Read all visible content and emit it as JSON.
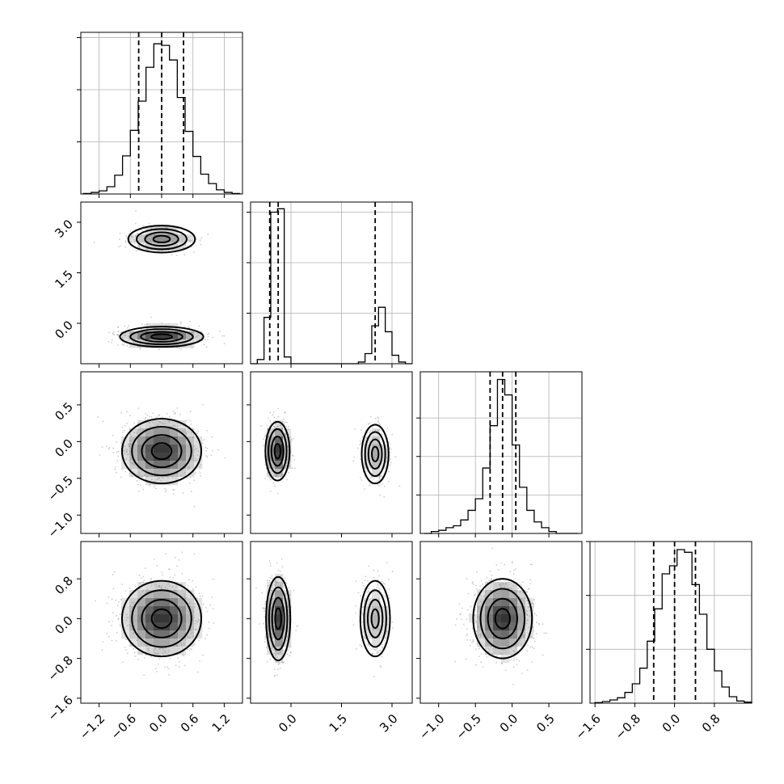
{
  "chart_data": {
    "type": "corner",
    "grid": true,
    "params": [
      {
        "range": [
          -1.55,
          1.55
        ],
        "ticks": [
          -1.2,
          -0.6,
          0.0,
          0.6,
          1.2
        ],
        "tick_labels": [
          "−1.2",
          "−0.6",
          "0.0",
          "0.6",
          "1.2"
        ],
        "quantiles": [
          -0.44,
          0.0,
          0.42
        ]
      },
      {
        "range": [
          -1.2,
          3.6
        ],
        "ticks": [
          0.0,
          1.5,
          3.0
        ],
        "tick_labels": [
          "0.0",
          "1.5",
          "3.0"
        ],
        "quantiles": [
          -0.63,
          -0.38,
          2.5
        ]
      },
      {
        "range": [
          -1.25,
          0.95
        ],
        "ticks": [
          -1.0,
          -0.5,
          0.0,
          0.5
        ],
        "tick_labels": [
          "−1.0",
          "−0.5",
          "0.0",
          "0.5"
        ],
        "quantiles": [
          -0.3,
          -0.13,
          0.05
        ]
      },
      {
        "range": [
          -1.7,
          1.55
        ],
        "ticks": [
          -1.6,
          -0.8,
          0.0,
          0.8
        ],
        "tick_labels": [
          "−1.6",
          "−0.8",
          "0.0",
          "0.8"
        ],
        "quantiles": [
          -0.42,
          0.0,
          0.42
        ]
      }
    ],
    "histograms": [
      {
        "param": 0,
        "bins": [
          -1.5,
          -1.35,
          -1.2,
          -1.05,
          -0.9,
          -0.75,
          -0.6,
          -0.45,
          -0.3,
          -0.15,
          0.0,
          0.15,
          0.3,
          0.45,
          0.6,
          0.75,
          0.9,
          1.05,
          1.2,
          1.35,
          1.5
        ],
        "counts": [
          1,
          3,
          6,
          14,
          36,
          73,
          122,
          178,
          243,
          288,
          285,
          257,
          185,
          120,
          72,
          38,
          20,
          8,
          3,
          1
        ],
        "ymax": 310,
        "yticks": [
          100,
          200,
          300
        ]
      },
      {
        "param": 1,
        "bins": [
          -1.2,
          -1.0,
          -0.8,
          -0.6,
          -0.4,
          -0.2,
          0.0,
          0.2,
          0.4,
          0.6,
          0.8,
          1.0,
          1.2,
          1.4,
          1.6,
          1.8,
          2.0,
          2.2,
          2.4,
          2.6,
          2.8,
          3.0,
          3.2,
          3.4,
          3.6
        ],
        "counts": [
          0,
          5,
          55,
          180,
          184,
          8,
          0,
          0,
          0,
          0,
          0,
          0,
          0,
          0,
          0,
          0,
          2,
          12,
          45,
          67,
          38,
          10,
          2,
          0
        ],
        "ymax": 192,
        "yticks": [
          60,
          120,
          180
        ]
      },
      {
        "param": 2,
        "bins": [
          -1.2,
          -1.1,
          -1.0,
          -0.9,
          -0.8,
          -0.7,
          -0.6,
          -0.5,
          -0.4,
          -0.3,
          -0.2,
          -0.1,
          0.0,
          0.1,
          0.2,
          0.3,
          0.4,
          0.5,
          0.6,
          0.7,
          0.8,
          0.9
        ],
        "counts": [
          0,
          5,
          8,
          15,
          20,
          35,
          60,
          90,
          170,
          280,
          400,
          360,
          230,
          120,
          60,
          30,
          15,
          5,
          0,
          0,
          0
        ],
        "ymax": 420,
        "yticks": [
          100,
          200,
          300
        ]
      },
      {
        "param": 3,
        "bins": [
          -1.6,
          -1.45,
          -1.3,
          -1.15,
          -1.0,
          -0.85,
          -0.7,
          -0.55,
          -0.4,
          -0.25,
          -0.1,
          0.05,
          0.2,
          0.35,
          0.5,
          0.65,
          0.8,
          0.95,
          1.1,
          1.25,
          1.4,
          1.55
        ],
        "counts": [
          1,
          3,
          6,
          10,
          20,
          36,
          65,
          115,
          175,
          240,
          255,
          285,
          280,
          220,
          165,
          100,
          60,
          30,
          12,
          4,
          2
        ],
        "ymax": 300,
        "yticks": [
          100,
          200,
          300
        ]
      }
    ],
    "pairs": [
      {
        "x": 1,
        "y": 0,
        "clusters": [
          {
            "cx": 0.0,
            "cy": 2.5,
            "sx": 0.32,
            "sy": 0.2,
            "n": 1000,
            "pixel_peak": 0.55
          },
          {
            "cx": 0.0,
            "cy": -0.4,
            "sx": 0.4,
            "sy": 0.15,
            "n": 1500,
            "pixel_peak": 0.95
          }
        ]
      },
      {
        "x": 2,
        "y": 0,
        "clusters": [
          {
            "cx": 0.0,
            "cy": -0.13,
            "sx": 0.38,
            "sy": 0.22,
            "n": 2500,
            "pixel_peak": 0.95
          }
        ]
      },
      {
        "x": 2,
        "y": 1,
        "clusters": [
          {
            "cx": -0.4,
            "cy": -0.13,
            "sx": 0.18,
            "sy": 0.2,
            "n": 1500,
            "pixel_peak": 0.95
          },
          {
            "cx": 2.5,
            "cy": -0.17,
            "sx": 0.2,
            "sy": 0.2,
            "n": 1000,
            "pixel_peak": 0.4
          }
        ]
      },
      {
        "x": 3,
        "y": 0,
        "clusters": [
          {
            "cx": 0.0,
            "cy": 0.0,
            "sx": 0.38,
            "sy": 0.38,
            "n": 2500,
            "pixel_peak": 0.95
          }
        ]
      },
      {
        "x": 3,
        "y": 1,
        "clusters": [
          {
            "cx": -0.38,
            "cy": 0.0,
            "sx": 0.18,
            "sy": 0.42,
            "n": 1500,
            "pixel_peak": 0.9
          },
          {
            "cx": 2.5,
            "cy": 0.0,
            "sx": 0.22,
            "sy": 0.38,
            "n": 1000,
            "pixel_peak": 0.35
          }
        ]
      },
      {
        "x": 3,
        "y": 2,
        "clusters": [
          {
            "cx": -0.13,
            "cy": 0.0,
            "sx": 0.2,
            "sy": 0.4,
            "n": 2500,
            "pixel_peak": 0.95
          }
        ]
      }
    ],
    "contour_levels_sigma": [
      0.5,
      1.0,
      1.5,
      2.0
    ]
  }
}
